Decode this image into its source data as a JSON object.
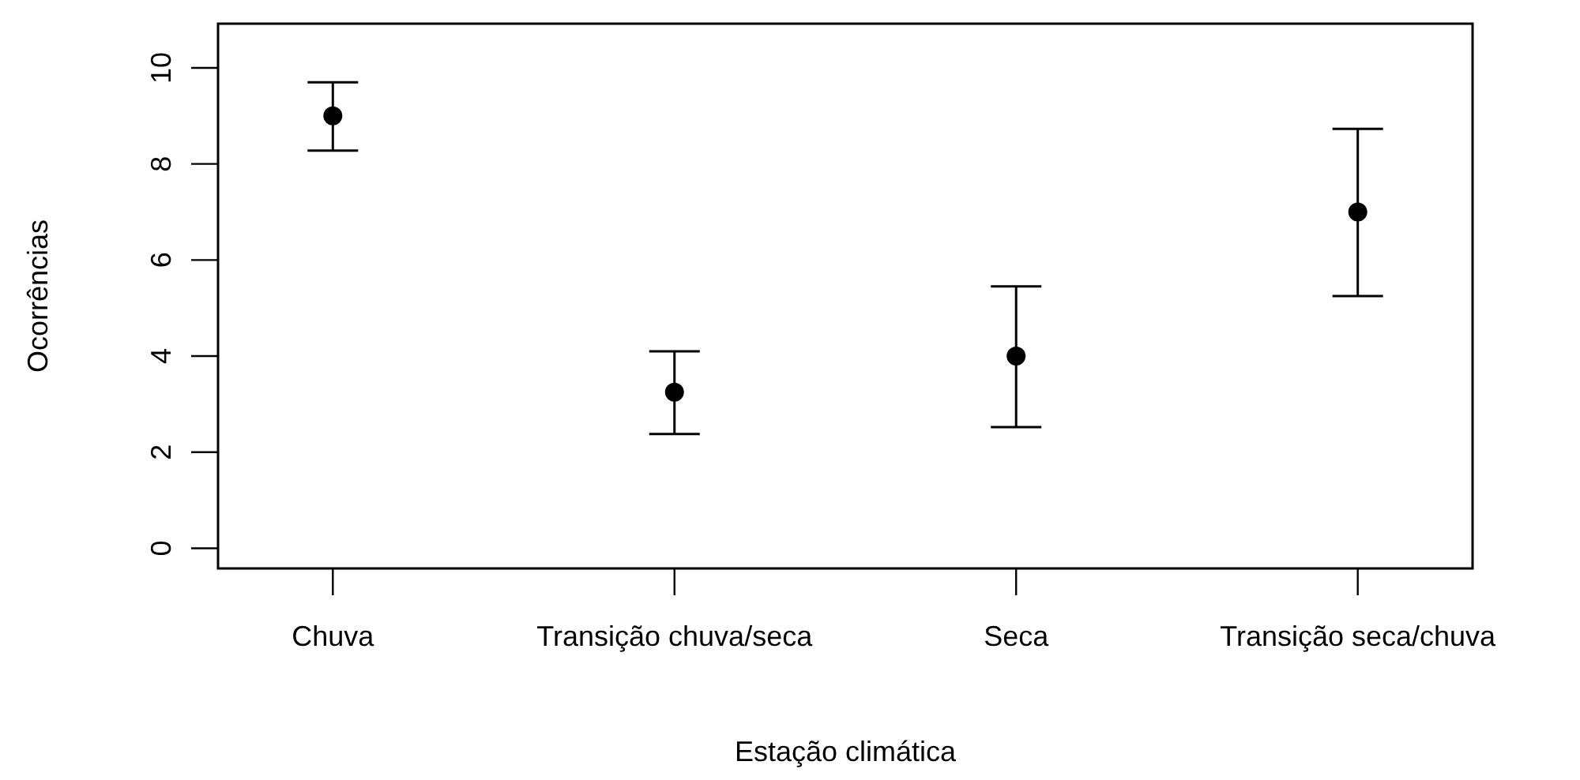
{
  "chart_data": {
    "type": "scatter",
    "xlabel": "Estação climática",
    "ylabel": "Ocorrências",
    "categories": [
      "Chuva",
      "Transição chuva/seca",
      "Seca",
      "Transição seca/chuva"
    ],
    "values": [
      9,
      3.25,
      4,
      7
    ],
    "errors": [
      [
        8.28,
        9.7
      ],
      [
        2.38,
        4.1
      ],
      [
        2.52,
        5.45
      ],
      [
        5.25,
        8.73
      ]
    ],
    "color": "#000000",
    "marker": "circle",
    "ylim": [
      -0.42,
      10.92
    ],
    "yticks": [
      0,
      2,
      4,
      6,
      8,
      10
    ]
  }
}
